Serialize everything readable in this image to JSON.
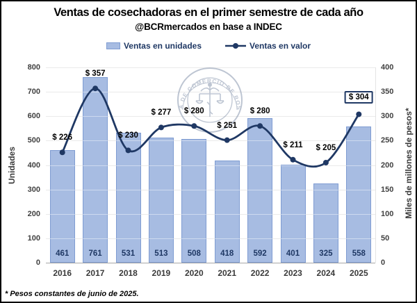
{
  "header": {
    "title": "Ventas de cosechadoras en el primer semestre de cada año",
    "subtitle": "@BCRmercados en base a INDEC"
  },
  "legend": {
    "units_label": "Ventas en unidades",
    "value_label": "Ventas en valor"
  },
  "watermark": {
    "text": "BOLSA DE COMERCIO DE ROSARIO"
  },
  "footnote": "* Pesos constantes de junio de 2025.",
  "colors": {
    "bar_fill": "#A7BCE2",
    "bar_border": "#7F9CD2",
    "line": "#1F3864",
    "navy_text": "#1F3864",
    "grid": "#D9D9D9",
    "axis_text": "#404040",
    "seal": "#7d8ca6"
  },
  "chart_data": {
    "type": "bar+line combo",
    "categories": [
      "2016",
      "2017",
      "2018",
      "2019",
      "2020",
      "2021",
      "2022",
      "2023",
      "2024",
      "2025"
    ],
    "series": [
      {
        "name": "Ventas en unidades",
        "type": "bar",
        "axis": "left",
        "values": [
          461,
          761,
          531,
          513,
          508,
          418,
          592,
          401,
          325,
          558
        ]
      },
      {
        "name": "Ventas en valor",
        "type": "line",
        "axis": "right",
        "values": [
          226,
          357,
          230,
          277,
          280,
          251,
          280,
          211,
          205,
          304
        ],
        "point_labels": [
          "$ 226",
          "$ 357",
          "$ 230",
          "$ 277",
          "$ 280",
          "$ 251",
          "$ 280",
          "$ 211",
          "$ 205",
          "$ 304"
        ],
        "highlighted_index": 9
      }
    ],
    "left_axis": {
      "title": "Unidades",
      "min": 0,
      "max": 800,
      "step": 100
    },
    "right_axis": {
      "title": "Miles de millones de pesos*",
      "min": 0,
      "max": 400,
      "step": 50
    },
    "grid": true,
    "legend_position": "top",
    "smooth_line": true
  }
}
